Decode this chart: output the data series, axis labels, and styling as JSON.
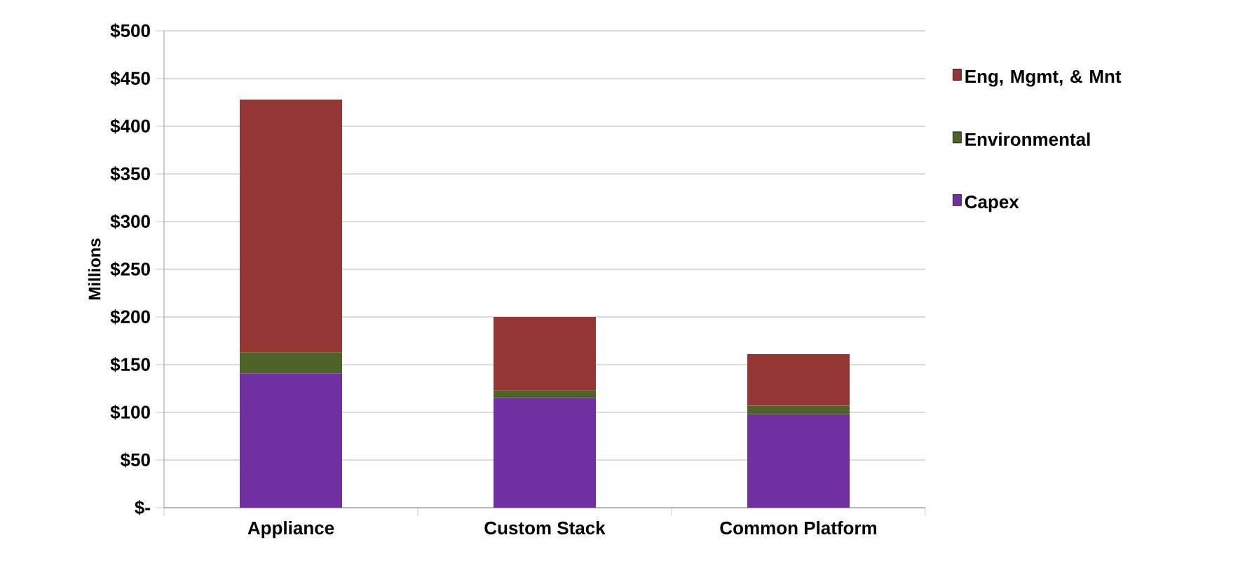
{
  "chart_data": {
    "type": "bar",
    "stacked": true,
    "ylabel": "Millions",
    "categories": [
      "Appliance",
      "Custom Stack",
      "Common Platform"
    ],
    "series": [
      {
        "name": "Capex",
        "color": "#7030a0",
        "values": [
          141,
          115,
          98
        ]
      },
      {
        "name": "Environmental",
        "color": "#4f6228",
        "values": [
          22,
          8,
          9
        ]
      },
      {
        "name": "Eng, Mgmt, & Mnt",
        "color": "#943634",
        "values": [
          265,
          77,
          54
        ]
      }
    ],
    "ylim": [
      0,
      500
    ],
    "yticks": [
      {
        "value": 0,
        "label": "$-"
      },
      {
        "value": 50,
        "label": "$50"
      },
      {
        "value": 100,
        "label": "$100"
      },
      {
        "value": 150,
        "label": "$150"
      },
      {
        "value": 200,
        "label": "$200"
      },
      {
        "value": 250,
        "label": "$250"
      },
      {
        "value": 300,
        "label": "$300"
      },
      {
        "value": 350,
        "label": "$350"
      },
      {
        "value": 400,
        "label": "$400"
      },
      {
        "value": 450,
        "label": "$450"
      },
      {
        "value": 500,
        "label": "$500"
      }
    ],
    "grid": "y",
    "legend": "right"
  }
}
